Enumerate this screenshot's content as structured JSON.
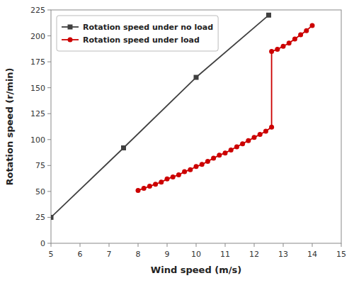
{
  "chart_data": {
    "type": "line",
    "x_label": "Wind speed (m/s)",
    "y_label": "Rotation speed (r/min)",
    "xlim": [
      5,
      15
    ],
    "ylim": [
      0,
      225
    ],
    "xticks": [
      5,
      6,
      7,
      8,
      9,
      10,
      11,
      12,
      13,
      14,
      15
    ],
    "yticks": [
      0,
      25,
      50,
      75,
      100,
      125,
      150,
      175,
      200,
      225
    ],
    "grid": false,
    "legend": "upper left",
    "series": [
      {
        "name": "Rotation speed under no load",
        "color": "#404040",
        "marker": "square",
        "line_style": "solid",
        "x": [
          5.0,
          7.5,
          10.0,
          12.5
        ],
        "values": [
          25,
          92,
          160,
          220
        ]
      },
      {
        "name": "Rotation speed under load",
        "color": "#cc0000",
        "marker": "circle",
        "line_style": "solid",
        "x": [
          8.0,
          8.2,
          8.4,
          8.6,
          8.8,
          9.0,
          9.2,
          9.4,
          9.6,
          9.8,
          10.0,
          10.2,
          10.4,
          10.6,
          10.8,
          11.0,
          11.2,
          11.4,
          11.6,
          11.8,
          12.0,
          12.2,
          12.4,
          12.6,
          12.6,
          12.8,
          13.0,
          13.2,
          13.4,
          13.6,
          13.8,
          14.0
        ],
        "values": [
          51,
          53,
          55,
          57,
          59,
          62,
          64,
          66,
          69,
          71,
          74,
          76,
          79,
          82,
          85,
          87,
          90,
          93,
          96,
          99,
          102,
          105,
          108,
          112,
          185,
          187,
          190,
          193,
          197,
          201,
          205,
          210
        ]
      }
    ]
  }
}
